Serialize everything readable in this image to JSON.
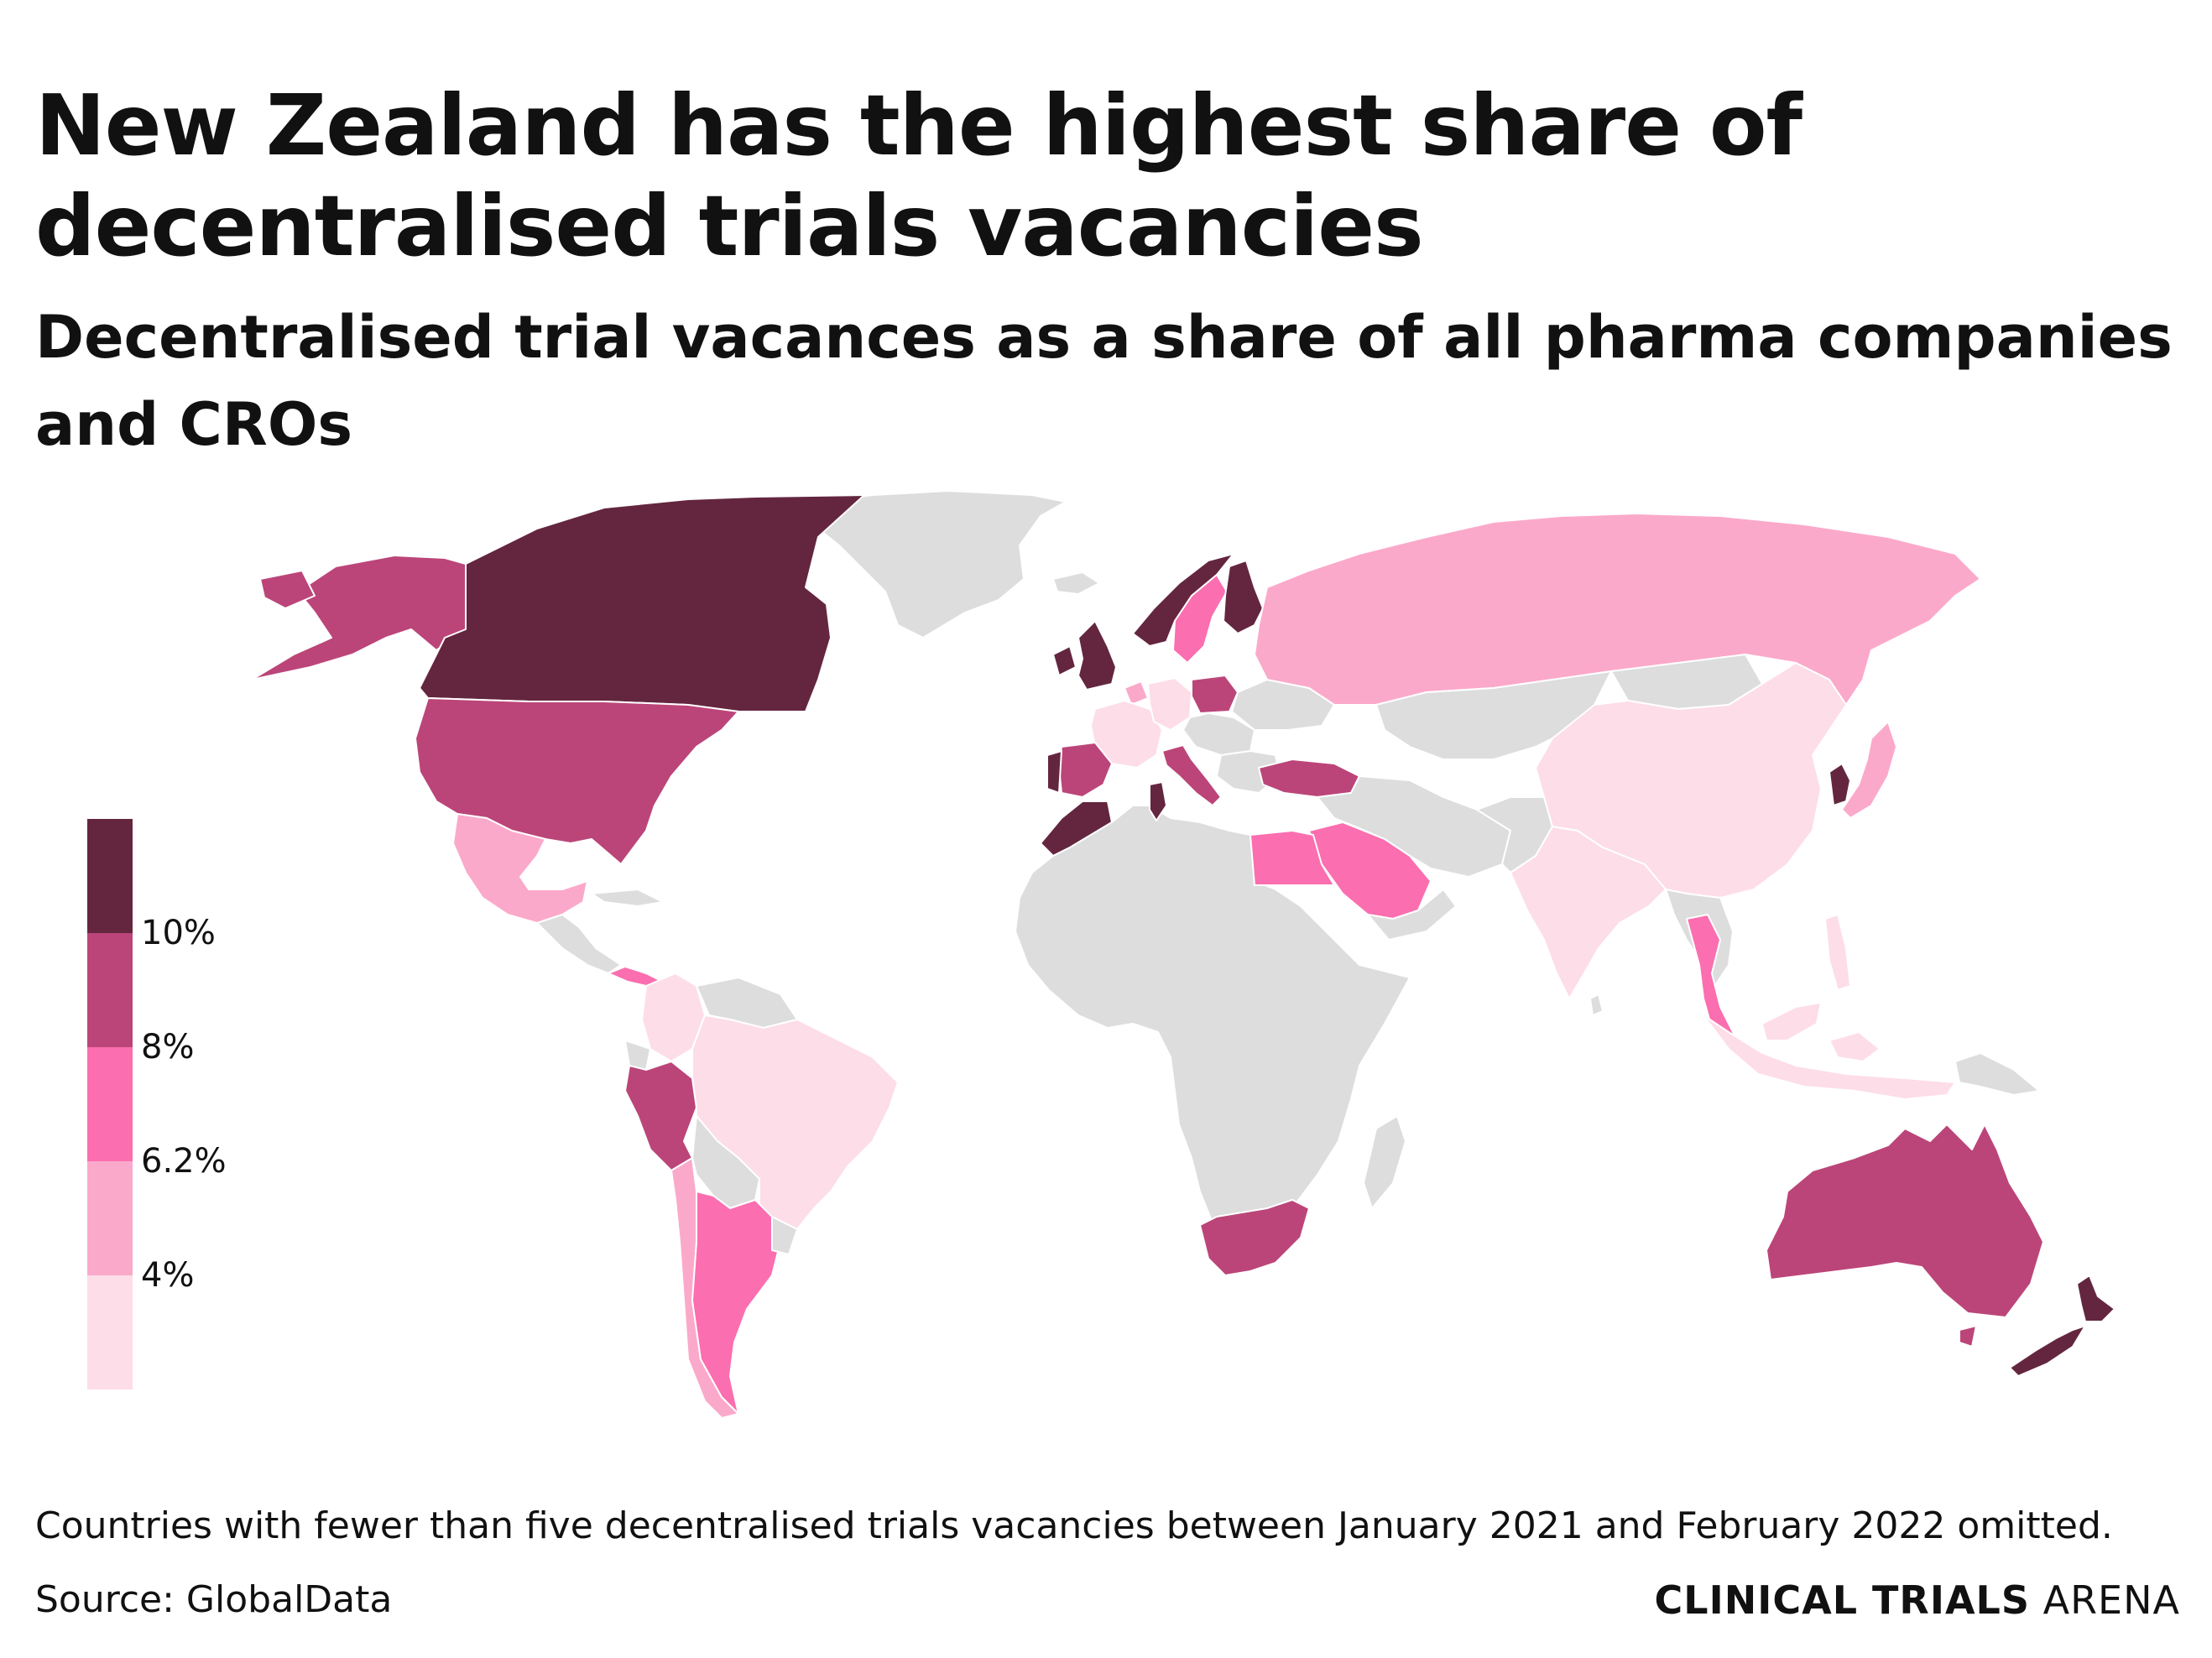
{
  "title": "New Zealand has the highest share of decentralised trials vacancies",
  "subtitle": "Decentralised trial vacances as a share of all pharma companies and CROs",
  "note": "Countries with fewer than five decentralised trials vacancies between January 2021 and February 2022 omitted.",
  "source": "Source: GlobalData",
  "brand": {
    "bold": "CLINICAL TRIALS",
    "light": "ARENA"
  },
  "colors": {
    "nodata": "#dddddd",
    "c1": "#fddde8",
    "c2": "#fba9cb",
    "c3": "#fb6eaf",
    "c4": "#bb4579",
    "c5": "#64263f",
    "border": "#ffffff"
  },
  "legend": {
    "labels": [
      "10%",
      "8%",
      "6.2%",
      "4%"
    ],
    "classes": [
      {
        "color": "#64263f"
      },
      {
        "color": "#bb4579"
      },
      {
        "color": "#fb6eaf"
      },
      {
        "color": "#fba9cb"
      },
      {
        "color": "#fddde8"
      }
    ]
  },
  "chart_data": {
    "type": "choropleth",
    "title": "New Zealand has the highest share of decentralised trials vacancies",
    "subtitle": "Decentralised trial vacances as a share of all pharma companies and CROs",
    "thresholds": [
      4,
      6.2,
      8,
      10
    ],
    "classes": [
      {
        "range": "< 4%",
        "color": "#fddde8"
      },
      {
        "range": "4% – 6.2%",
        "color": "#fba9cb"
      },
      {
        "range": "6.2% – 8%",
        "color": "#fb6eaf"
      },
      {
        "range": "8% – 10%",
        "color": "#bb4579"
      },
      {
        "range": "> 10%",
        "color": "#64263f"
      }
    ],
    "countries": [
      {
        "name": "New Zealand",
        "class": 5
      },
      {
        "name": "Canada",
        "class": 5
      },
      {
        "name": "United Kingdom",
        "class": 5
      },
      {
        "name": "Ireland",
        "class": 5
      },
      {
        "name": "Norway",
        "class": 5
      },
      {
        "name": "Finland",
        "class": 5
      },
      {
        "name": "Morocco",
        "class": 5
      },
      {
        "name": "Tunisia",
        "class": 5
      },
      {
        "name": "Portugal",
        "class": 5
      },
      {
        "name": "South Korea",
        "class": 5
      },
      {
        "name": "United States",
        "class": 4
      },
      {
        "name": "Alaska (US)",
        "class": 4
      },
      {
        "name": "Australia",
        "class": 4
      },
      {
        "name": "South Africa",
        "class": 4
      },
      {
        "name": "Peru",
        "class": 4
      },
      {
        "name": "Turkey",
        "class": 4
      },
      {
        "name": "Spain",
        "class": 4
      },
      {
        "name": "Italy",
        "class": 4
      },
      {
        "name": "Poland",
        "class": 4
      },
      {
        "name": "Argentina",
        "class": 3
      },
      {
        "name": "Egypt",
        "class": 3
      },
      {
        "name": "Saudi Arabia",
        "class": 3
      },
      {
        "name": "Thailand",
        "class": 3
      },
      {
        "name": "Sweden",
        "class": 3
      },
      {
        "name": "Panama",
        "class": 3
      },
      {
        "name": "Russia",
        "class": 2
      },
      {
        "name": "Mexico",
        "class": 2
      },
      {
        "name": "Japan",
        "class": 2
      },
      {
        "name": "Chile",
        "class": 2
      },
      {
        "name": "Netherlands",
        "class": 2
      },
      {
        "name": "China",
        "class": 1
      },
      {
        "name": "India",
        "class": 1
      },
      {
        "name": "Brazil",
        "class": 1
      },
      {
        "name": "France",
        "class": 1
      },
      {
        "name": "Germany",
        "class": 1
      },
      {
        "name": "Indonesia",
        "class": 1
      },
      {
        "name": "Philippines",
        "class": 1
      },
      {
        "name": "Malaysia",
        "class": 1
      },
      {
        "name": "Colombia",
        "class": 1
      },
      {
        "name": "Greenland",
        "class": 0
      },
      {
        "name": "Africa (other)",
        "class": 0
      },
      {
        "name": "Central Asia & Middle East (other)",
        "class": 0
      }
    ]
  }
}
